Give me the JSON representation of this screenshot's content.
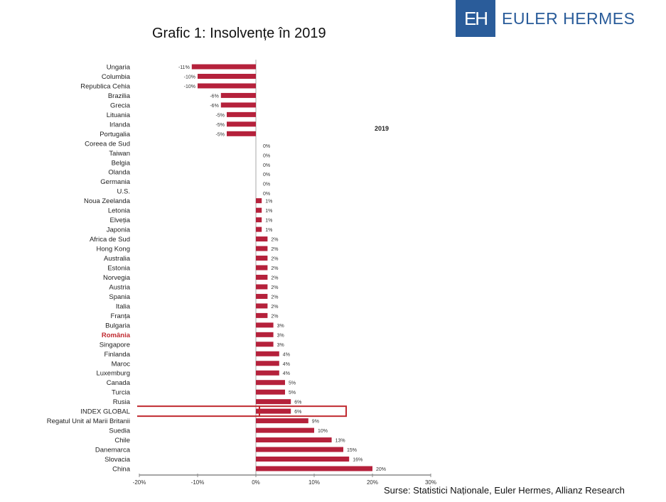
{
  "title": "Grafic 1: Insolvențe în 2019",
  "brand": {
    "logo_text": "EH",
    "name": "EULER HERMES",
    "color": "#2a5c9a"
  },
  "source": "Surse: Statistici Naționale, Euler Hermes, Allianz Research",
  "chart_data": {
    "type": "bar",
    "orientation": "horizontal",
    "legend": "2019",
    "bar_color": "#b5213b",
    "highlight_color": "#c0292f",
    "highlight_category": "România",
    "boxed_category": "INDEX GLOBAL",
    "xlim": [
      -20,
      30
    ],
    "xticks": [
      "-20%",
      "-10%",
      "0%",
      "10%",
      "20%",
      "30%"
    ],
    "xtick_values": [
      -20,
      -10,
      0,
      10,
      20,
      30
    ],
    "categories": [
      "Ungaria",
      "Columbia",
      "Republica Cehia",
      "Brazilia",
      "Grecia",
      "Lituania",
      "Irlanda",
      "Portugalia",
      "Coreea de Sud",
      "Taiwan",
      "Belgia",
      "Olanda",
      "Germania",
      "U.S.",
      "Noua Zeelanda",
      "Letonia",
      "Elveția",
      "Japonia",
      "Africa de Sud",
      "Hong Kong",
      "Australia",
      "Estonia",
      "Norvegia",
      "Austria",
      "Spania",
      "Italia",
      "Franța",
      "Bulgaria",
      "România",
      "Singapore",
      "Finlanda",
      "Maroc",
      "Luxemburg",
      "Canada",
      "Turcia",
      "Rusia",
      "INDEX GLOBAL",
      "Regatul Unit al Marii Britanii",
      "Suedia",
      "Chile",
      "Danemarca",
      "Slovacia",
      "China"
    ],
    "values": [
      -11,
      -10,
      -10,
      -6,
      -6,
      -5,
      -5,
      -5,
      0,
      0,
      0,
      0,
      0,
      0,
      1,
      1,
      1,
      1,
      2,
      2,
      2,
      2,
      2,
      2,
      2,
      2,
      2,
      3,
      3,
      3,
      4,
      4,
      4,
      5,
      5,
      6,
      6,
      9,
      10,
      13,
      15,
      16,
      20
    ],
    "labels": [
      "-11%",
      "-10%",
      "-10%",
      "-6%",
      "-6%",
      "-5%",
      "-5%",
      "-5%",
      "0%",
      "0%",
      "0%",
      "0%",
      "0%",
      "0%",
      "1%",
      "1%",
      "1%",
      "1%",
      "2%",
      "2%",
      "2%",
      "2%",
      "2%",
      "2%",
      "2%",
      "2%",
      "2%",
      "3%",
      "3%",
      "3%",
      "4%",
      "4%",
      "4%",
      "5%",
      "5%",
      "6%",
      "6%",
      "9%",
      "10%",
      "13%",
      "15%",
      "16%",
      "20%"
    ]
  }
}
